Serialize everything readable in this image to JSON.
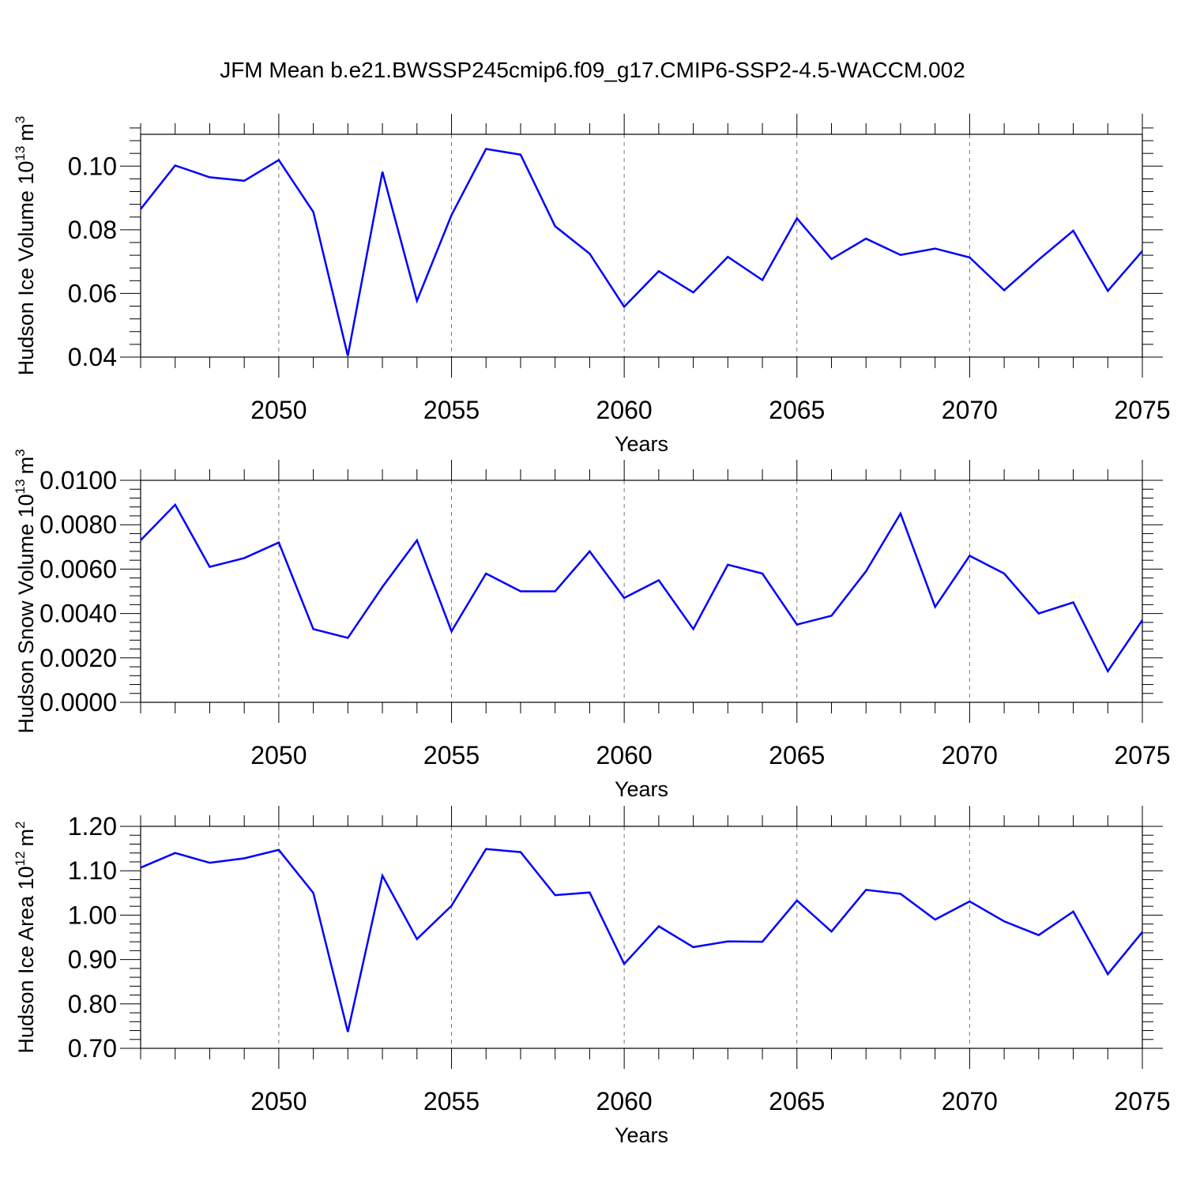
{
  "title": "JFM Mean b.e21.BWSSP245cmip6.f09_g17.CMIP6-SSP2-4.5-WACCM.002",
  "chart_data": [
    {
      "type": "line",
      "xlabel": "Years",
      "ylabel_text": "Hudson Ice Volume 10",
      "ylabel_exp": "13",
      "ylabel_unit": "m",
      "ylabel_unit_exp": "3",
      "xlim": [
        2046,
        2075
      ],
      "ylim": [
        0.04,
        0.11
      ],
      "xticks": [
        2050,
        2055,
        2060,
        2065,
        2070,
        2075
      ],
      "yticks": [
        0.04,
        0.06,
        0.08,
        0.1
      ],
      "ytick_labels": [
        "0.04",
        "0.06",
        "0.08",
        "0.10"
      ],
      "ymajor_step": 0.02,
      "yminor_step": 0.004,
      "x": [
        2046,
        2047,
        2048,
        2049,
        2050,
        2051,
        2052,
        2053,
        2054,
        2055,
        2056,
        2057,
        2058,
        2059,
        2060,
        2061,
        2062,
        2063,
        2064,
        2065,
        2066,
        2067,
        2068,
        2069,
        2070,
        2071,
        2072,
        2073,
        2074,
        2075
      ],
      "values": [
        0.0865,
        0.1002,
        0.0965,
        0.0954,
        0.1019,
        0.0856,
        0.0404,
        0.0982,
        0.0577,
        0.0846,
        0.1054,
        0.1036,
        0.0811,
        0.0725,
        0.0558,
        0.067,
        0.0603,
        0.0715,
        0.0642,
        0.0836,
        0.0708,
        0.0772,
        0.0721,
        0.0741,
        0.0713,
        0.061,
        0.0706,
        0.0797,
        0.0608,
        0.0733
      ]
    },
    {
      "type": "line",
      "xlabel": "Years",
      "ylabel_text": "Hudson Snow Volume 10",
      "ylabel_exp": "13",
      "ylabel_unit": "m",
      "ylabel_unit_exp": "3",
      "xlim": [
        2046,
        2075
      ],
      "ylim": [
        0.0,
        0.01
      ],
      "xticks": [
        2050,
        2055,
        2060,
        2065,
        2070,
        2075
      ],
      "yticks": [
        0.0,
        0.002,
        0.004,
        0.006,
        0.008,
        0.01
      ],
      "ytick_labels": [
        "0.0000",
        "0.0020",
        "0.0040",
        "0.0060",
        "0.0080",
        "0.0100"
      ],
      "ymajor_step": 0.002,
      "yminor_step": 0.0004,
      "x": [
        2046,
        2047,
        2048,
        2049,
        2050,
        2051,
        2052,
        2053,
        2054,
        2055,
        2056,
        2057,
        2058,
        2059,
        2060,
        2061,
        2062,
        2063,
        2064,
        2065,
        2066,
        2067,
        2068,
        2069,
        2070,
        2071,
        2072,
        2073,
        2074,
        2075
      ],
      "values": [
        0.0073,
        0.0089,
        0.0061,
        0.0065,
        0.0072,
        0.0033,
        0.0029,
        0.0052,
        0.0073,
        0.0032,
        0.0058,
        0.005,
        0.005,
        0.0068,
        0.0047,
        0.0055,
        0.0033,
        0.0062,
        0.0058,
        0.0035,
        0.0039,
        0.0059,
        0.0085,
        0.0043,
        0.0066,
        0.0058,
        0.004,
        0.0045,
        0.0014,
        0.0037
      ]
    },
    {
      "type": "line",
      "xlabel": "Years",
      "ylabel_text": "Hudson Ice Area 10",
      "ylabel_exp": "12",
      "ylabel_unit": "m",
      "ylabel_unit_exp": "2",
      "xlim": [
        2046,
        2075
      ],
      "ylim": [
        0.7,
        1.2
      ],
      "xticks": [
        2050,
        2055,
        2060,
        2065,
        2070,
        2075
      ],
      "yticks": [
        0.7,
        0.8,
        0.9,
        1.0,
        1.1,
        1.2
      ],
      "ytick_labels": [
        "0.70",
        "0.80",
        "0.90",
        "1.00",
        "1.10",
        "1.20"
      ],
      "ymajor_step": 0.1,
      "yminor_step": 0.02,
      "x": [
        2046,
        2047,
        2048,
        2049,
        2050,
        2051,
        2052,
        2053,
        2054,
        2055,
        2056,
        2057,
        2058,
        2059,
        2060,
        2061,
        2062,
        2063,
        2064,
        2065,
        2066,
        2067,
        2068,
        2069,
        2070,
        2071,
        2072,
        2073,
        2074,
        2075
      ],
      "values": [
        1.107,
        1.14,
        1.118,
        1.128,
        1.147,
        1.05,
        0.737,
        1.089,
        0.946,
        1.021,
        1.149,
        1.142,
        1.045,
        1.051,
        0.89,
        0.975,
        0.928,
        0.941,
        0.94,
        1.033,
        0.963,
        1.057,
        1.048,
        0.99,
        1.031,
        0.986,
        0.955,
        1.008,
        0.867,
        0.962
      ]
    }
  ]
}
